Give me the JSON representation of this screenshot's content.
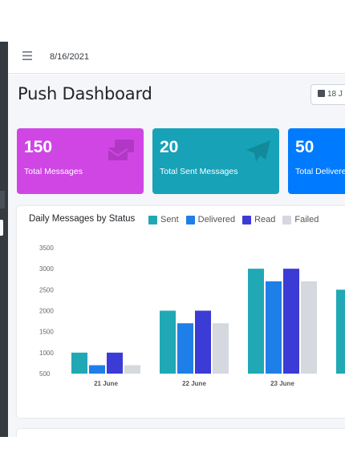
{
  "topbar": {
    "menu_icon": "hamburger-icon",
    "date": "8/16/2021"
  },
  "page": {
    "title": "Push Dashboard",
    "date_button": "18 J"
  },
  "stats": [
    {
      "value": "150",
      "label": "Total Messages",
      "color": "#cf46e5",
      "icon": "envelopes-icon"
    },
    {
      "value": "20",
      "label": "Total Sent Messages",
      "color": "#17a2b8",
      "icon": "paper-plane-icon"
    },
    {
      "value": "50",
      "label": "Total Delivere",
      "color": "#007bff",
      "icon": ""
    }
  ],
  "chart_card": {
    "title": "Daily Messages by Status"
  },
  "chart_data": {
    "type": "bar",
    "categories": [
      "21 June",
      "22 June",
      "23 June",
      ""
    ],
    "series": [
      {
        "name": "Sent",
        "color": "#20a8b5",
        "values": [
          1000,
          2000,
          3000,
          2500
        ]
      },
      {
        "name": "Delivered",
        "color": "#1f7fe8",
        "values": [
          700,
          1700,
          2700,
          null
        ]
      },
      {
        "name": "Read",
        "color": "#3b3bd6",
        "values": [
          1000,
          2000,
          3000,
          null
        ]
      },
      {
        "name": "Failed",
        "color": "#d5d8de",
        "values": [
          700,
          1700,
          2700,
          null
        ]
      }
    ],
    "yticks": [
      "3500",
      "3000",
      "2500",
      "2000",
      "1500",
      "1000",
      "500"
    ],
    "ylim": [
      500,
      3500
    ],
    "legend": "top"
  }
}
